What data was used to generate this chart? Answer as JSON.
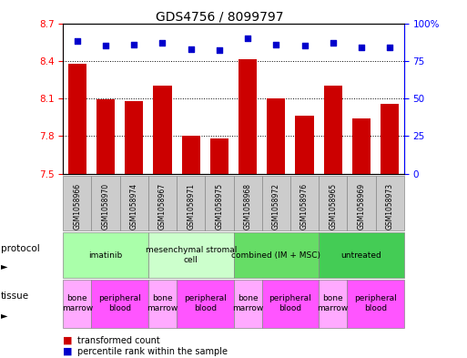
{
  "title": "GDS4756 / 8099797",
  "samples": [
    "GSM1058966",
    "GSM1058970",
    "GSM1058974",
    "GSM1058967",
    "GSM1058971",
    "GSM1058975",
    "GSM1058968",
    "GSM1058972",
    "GSM1058976",
    "GSM1058965",
    "GSM1058969",
    "GSM1058973"
  ],
  "bar_values": [
    8.38,
    8.09,
    8.08,
    8.2,
    7.8,
    7.78,
    8.41,
    8.1,
    7.96,
    8.2,
    7.94,
    8.06
  ],
  "percentile_values": [
    88,
    85,
    86,
    87,
    83,
    82,
    90,
    86,
    85,
    87,
    84,
    84
  ],
  "ylim_left": [
    7.5,
    8.7
  ],
  "ylim_right": [
    0,
    100
  ],
  "yticks_left": [
    7.5,
    7.8,
    8.1,
    8.4,
    8.7
  ],
  "yticks_right": [
    0,
    25,
    50,
    75,
    100
  ],
  "bar_color": "#cc0000",
  "dot_color": "#0000cc",
  "protocols": [
    {
      "label": "imatinib",
      "start": 0,
      "end": 3,
      "color": "#aaffaa"
    },
    {
      "label": "mesenchymal stromal\ncell",
      "start": 3,
      "end": 6,
      "color": "#ccffcc"
    },
    {
      "label": "combined (IM + MSC)",
      "start": 6,
      "end": 9,
      "color": "#66dd66"
    },
    {
      "label": "untreated",
      "start": 9,
      "end": 12,
      "color": "#44cc55"
    }
  ],
  "tissues": [
    {
      "label": "bone\nmarrow",
      "start": 0,
      "end": 1,
      "color": "#ffaaff"
    },
    {
      "label": "peripheral\nblood",
      "start": 1,
      "end": 3,
      "color": "#ff55ff"
    },
    {
      "label": "bone\nmarrow",
      "start": 3,
      "end": 4,
      "color": "#ffaaff"
    },
    {
      "label": "peripheral\nblood",
      "start": 4,
      "end": 6,
      "color": "#ff55ff"
    },
    {
      "label": "bone\nmarrow",
      "start": 6,
      "end": 7,
      "color": "#ffaaff"
    },
    {
      "label": "peripheral\nblood",
      "start": 7,
      "end": 9,
      "color": "#ff55ff"
    },
    {
      "label": "bone\nmarrow",
      "start": 9,
      "end": 10,
      "color": "#ffaaff"
    },
    {
      "label": "peripheral\nblood",
      "start": 10,
      "end": 12,
      "color": "#ff55ff"
    }
  ],
  "sample_bg_color": "#cccccc",
  "fig_width": 5.13,
  "fig_height": 3.93,
  "dpi": 100
}
